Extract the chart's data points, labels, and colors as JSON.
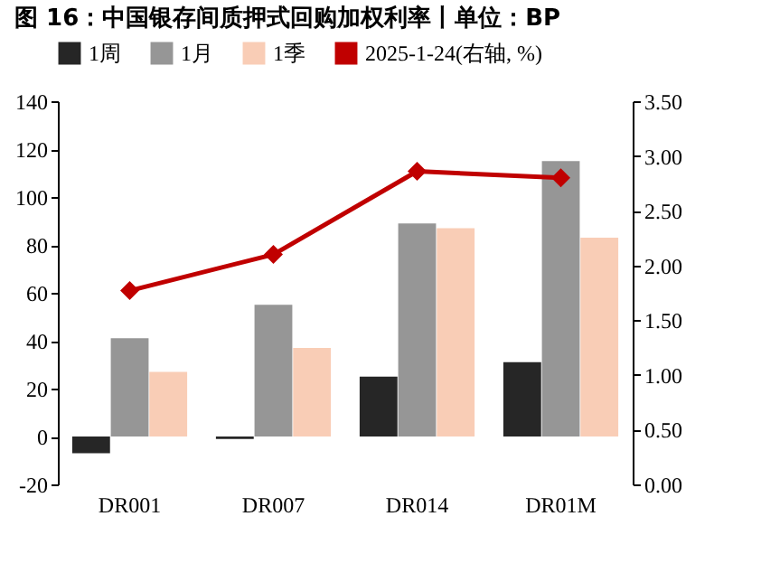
{
  "chart_data": {
    "type": "bar",
    "title": "图 16：中国银存间质押式回购加权利率丨单位：BP",
    "categories": [
      "DR001",
      "DR007",
      "DR014",
      "DR01M"
    ],
    "series": [
      {
        "name": "1周",
        "color": "#262626",
        "values": [
          -7,
          -1,
          25,
          31
        ]
      },
      {
        "name": "1月",
        "color": "#969696",
        "values": [
          41,
          55,
          89,
          115
        ]
      },
      {
        "name": "1季",
        "color": "#f9cdb6",
        "values": [
          27,
          37,
          87,
          83
        ]
      },
      {
        "name": "2025-1-24(右轴, %)",
        "type": "line",
        "axis": "y2",
        "color": "#c00000",
        "marker": "diamond",
        "values": [
          1.77,
          2.1,
          2.86,
          2.8
        ]
      }
    ],
    "ylim": [
      -20,
      140
    ],
    "yticks": [
      -20,
      0,
      20,
      40,
      60,
      80,
      100,
      120,
      140
    ],
    "y2lim": [
      0,
      3.5
    ],
    "y2ticks": [
      {
        "value": 0,
        "label": "0.00"
      },
      {
        "value": 0.5,
        "label": "0.50"
      },
      {
        "value": 1,
        "label": "1.00"
      },
      {
        "value": 1.5,
        "label": "1.50"
      },
      {
        "value": 2,
        "label": "2.00"
      },
      {
        "value": 2.5,
        "label": "2.50"
      },
      {
        "value": 3,
        "label": "3.00"
      },
      {
        "value": 3.5,
        "label": "3.50"
      }
    ],
    "legend": "top",
    "grid": false
  }
}
